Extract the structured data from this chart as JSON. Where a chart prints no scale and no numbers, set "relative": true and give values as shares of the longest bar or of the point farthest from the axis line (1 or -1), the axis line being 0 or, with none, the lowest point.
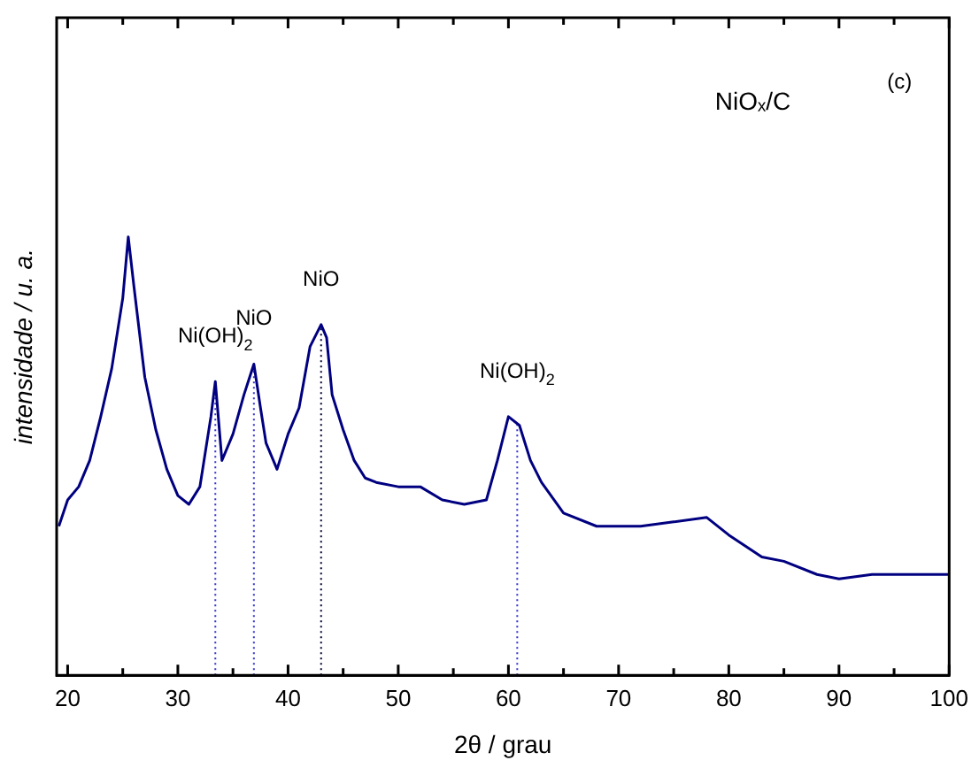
{
  "chart_data": {
    "type": "line",
    "relative": true,
    "xlabel": "2θ / grau",
    "ylabel": "intensidade / u. a.",
    "annotations": [
      "NiOₓ/C",
      "(c)"
    ],
    "x": [
      19.2,
      20,
      21,
      22,
      23,
      24,
      25,
      25.5,
      26,
      27,
      28,
      29,
      30,
      31,
      32,
      33,
      33.4,
      34,
      35,
      36,
      36.9,
      37.5,
      38,
      39,
      40,
      41,
      42,
      43,
      43.5,
      44,
      45,
      46,
      47,
      48,
      50,
      52,
      54,
      56,
      58,
      59,
      60,
      61,
      62,
      63,
      65,
      68,
      70,
      72,
      75,
      78,
      80,
      83,
      85,
      88,
      90,
      93,
      95,
      98,
      100
    ],
    "series": [
      {
        "color": "#000080",
        "values": [
          0.34,
          0.4,
          0.43,
          0.49,
          0.59,
          0.7,
          0.86,
          1.0,
          0.89,
          0.68,
          0.56,
          0.47,
          0.41,
          0.39,
          0.43,
          0.59,
          0.67,
          0.49,
          0.55,
          0.64,
          0.71,
          0.61,
          0.53,
          0.47,
          0.55,
          0.61,
          0.75,
          0.8,
          0.77,
          0.64,
          0.56,
          0.49,
          0.45,
          0.44,
          0.43,
          0.43,
          0.4,
          0.39,
          0.4,
          0.49,
          0.59,
          0.57,
          0.49,
          0.44,
          0.37,
          0.34,
          0.34,
          0.34,
          0.35,
          0.36,
          0.32,
          0.27,
          0.26,
          0.23,
          0.22,
          0.23,
          0.23,
          0.23,
          0.23
        ]
      }
    ],
    "xlim": [
      19,
      100
    ],
    "xticks": [
      20,
      {
        "value": 25,
        "label": null
      },
      30,
      {
        "value": 35,
        "label": null
      },
      40,
      {
        "value": 45,
        "label": null
      },
      50,
      {
        "value": 55,
        "label": null
      },
      60,
      {
        "value": 65,
        "label": null
      },
      70,
      {
        "value": 75,
        "label": null
      },
      80,
      {
        "value": 85,
        "label": null
      },
      90,
      {
        "value": 95,
        "label": null
      },
      100
    ],
    "ref_lines": [
      {
        "axis": "x",
        "value": 33.4,
        "label": "Ni(OH)$_{2}$",
        "color": "#3333cc",
        "line_style": "dotted"
      },
      {
        "axis": "x",
        "value": 36.9,
        "label": "NiO",
        "color": "#3333cc",
        "line_style": "dotted"
      },
      {
        "axis": "x",
        "value": 43.0,
        "label": "NiO",
        "color": "#000033",
        "line_style": "dotted"
      },
      {
        "axis": "x",
        "value": 60.8,
        "label": "Ni(OH)$_{2}$",
        "color": "#3333cc",
        "line_style": "dotted"
      }
    ],
    "grid": false,
    "legend": false,
    "marker": "none",
    "line_style": "solid"
  }
}
